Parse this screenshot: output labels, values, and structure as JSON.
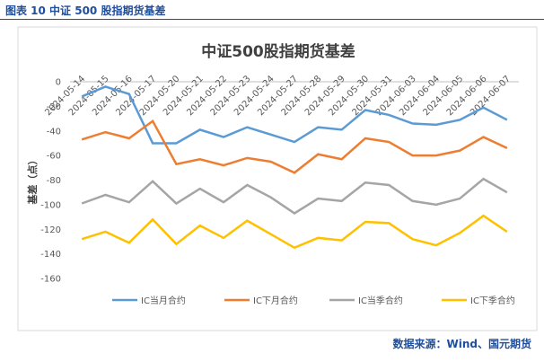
{
  "header": {
    "title": "图表 10  中证 500 股指期货基差"
  },
  "footer": "数据来源：Wind、国元期货",
  "chart_data": {
    "type": "line",
    "title": "中证500股指期货基差",
    "y_label": "基差（点）",
    "categories": [
      "2024-05-14",
      "2024-05-15",
      "2024-05-16",
      "2024-05-17",
      "2024-05-20",
      "2024-05-21",
      "2024-05-22",
      "2024-05-23",
      "2024-05-24",
      "2024-05-27",
      "2024-05-28",
      "2024-05-29",
      "2024-05-30",
      "2024-05-31",
      "2024-06-03",
      "2024-06-04",
      "2024-06-05",
      "2024-06-06",
      "2024-06-07"
    ],
    "series": [
      {
        "name": "IC当月合约",
        "color": "#5b9bd5",
        "values": [
          -12,
          -4,
          -10,
          -50,
          -50,
          -39,
          -45,
          -37,
          -43,
          -49,
          -37,
          -39,
          -23,
          -27,
          -34,
          -35,
          -31,
          -21,
          -31
        ]
      },
      {
        "name": "IC下月合约",
        "color": "#ed7d31",
        "values": [
          -47,
          -41,
          -46,
          -32,
          -67,
          -63,
          -68,
          -62,
          -65,
          -74,
          -59,
          -63,
          -46,
          -49,
          -60,
          -60,
          -56,
          -45,
          -54
        ]
      },
      {
        "name": "IC当季合约",
        "color": "#a5a5a5",
        "values": [
          -99,
          -92,
          -98,
          -81,
          -99,
          -87,
          -98,
          -84,
          -94,
          -107,
          -95,
          -97,
          -82,
          -84,
          -97,
          -100,
          -95,
          -79,
          -90
        ]
      },
      {
        "name": "IC下季合约",
        "color": "#ffc000",
        "values": [
          -128,
          -122,
          -131,
          -112,
          -132,
          -117,
          -127,
          -113,
          -124,
          -135,
          -127,
          -129,
          -114,
          -115,
          -128,
          -133,
          -123,
          -109,
          -122
        ]
      }
    ],
    "ylim": [
      -160,
      0
    ],
    "yticks": [
      0,
      -20,
      -40,
      -60,
      -80,
      -100,
      -120,
      -140,
      -160
    ],
    "grid": false,
    "legend": "bottom"
  }
}
